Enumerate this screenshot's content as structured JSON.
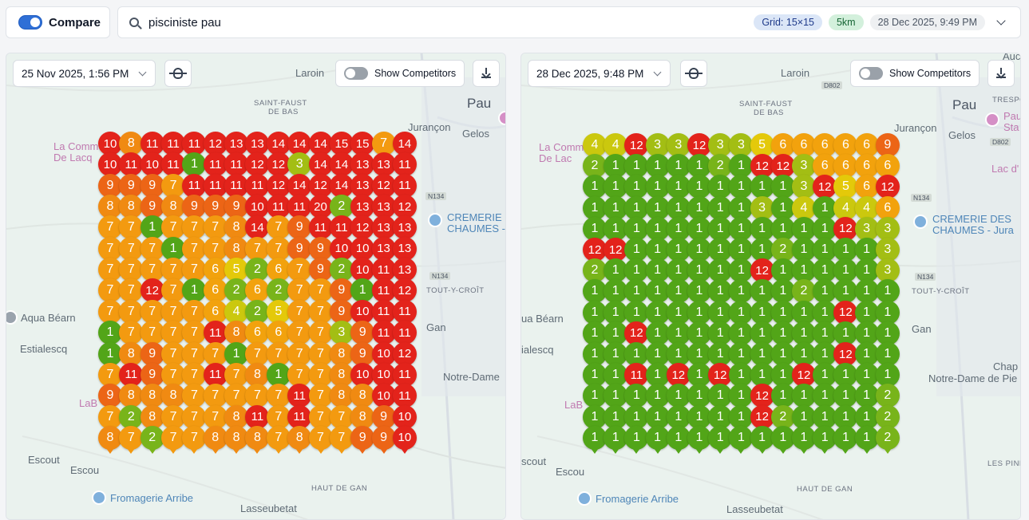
{
  "topbar": {
    "compare_label": "Compare",
    "search_value": "pisciniste pau",
    "badge_grid": "Grid: 15×15",
    "badge_km": "5km",
    "badge_date": "28 Dec 2025, 9:49 PM"
  },
  "colors": {
    "1": "#52a518",
    "2": "#78b41a",
    "3": "#a3be14",
    "4": "#cbc80e",
    "5": "#e4c90a",
    "6": "#f2a20d",
    "7": "#f39a10",
    "8": "#f08a12",
    "9": "#ec6516",
    "10": "#e4281c",
    "high": "#e3231b"
  },
  "left_panel": {
    "date": "25 Nov 2025, 1:56 PM",
    "competitors_label": "Show Competitors",
    "map_labels": {
      "laroin": "Laroin",
      "saint_faust": "SAINT-FAUST",
      "de_bas": "DE BAS",
      "pau": "Pau",
      "jurancon": "Jurançon",
      "gelos": "Gelos",
      "la_commune": "La Commune",
      "de_lacq": "De Lacq",
      "cremerie": "CREMERIE D",
      "chaumes": "CHAUMES -",
      "n134a": "N134",
      "n134b": "N134",
      "tout_y_croit": "TOUT-Y-CROÎT",
      "aqua": "Aqua Béarn",
      "estialescq": "Estialescq",
      "gan": "Gan",
      "notre_dame": "Notre-Dame",
      "escout": "Escout",
      "escou": "Escou",
      "labo": "LaB",
      "haut_de_gan": "HAUT DE GAN",
      "fromagerie": "Fromagerie Arribe",
      "lasseubetat": "Lasseubetat"
    },
    "grid": [
      [
        "10",
        "8",
        "11",
        "11",
        "11",
        "12",
        "13",
        "13",
        "14",
        "14",
        "14",
        "15",
        "15",
        "7",
        "14"
      ],
      [
        "10",
        "11",
        "10",
        "11",
        "1",
        "11",
        "11",
        "12",
        "12",
        "3",
        "14",
        "14",
        "13",
        "13",
        "11"
      ],
      [
        "9",
        "9",
        "9",
        "7",
        "11",
        "11",
        "11",
        "11",
        "12",
        "14",
        "12",
        "14",
        "13",
        "12",
        "11"
      ],
      [
        "8",
        "8",
        "9",
        "8",
        "9",
        "9",
        "9",
        "10",
        "11",
        "11",
        "20",
        "2",
        "13",
        "13",
        "12"
      ],
      [
        "7",
        "7",
        "1",
        "7",
        "7",
        "7",
        "8",
        "14",
        "7",
        "9",
        "11",
        "11",
        "12",
        "13",
        "13"
      ],
      [
        "7",
        "7",
        "7",
        "1",
        "7",
        "7",
        "8",
        "7",
        "7",
        "9",
        "9",
        "10",
        "10",
        "13",
        "13"
      ],
      [
        "7",
        "7",
        "7",
        "7",
        "7",
        "6",
        "5",
        "2",
        "6",
        "7",
        "9",
        "2",
        "10",
        "11",
        "13"
      ],
      [
        "7",
        "7",
        "12",
        "7",
        "1",
        "6",
        "2",
        "6",
        "2",
        "7",
        "7",
        "9",
        "1",
        "11",
        "12"
      ],
      [
        "7",
        "7",
        "7",
        "7",
        "7",
        "6",
        "4",
        "2",
        "5",
        "7",
        "7",
        "9",
        "10",
        "11",
        "11"
      ],
      [
        "1",
        "7",
        "7",
        "7",
        "7",
        "11",
        "8",
        "6",
        "6",
        "7",
        "7",
        "3",
        "9",
        "11",
        "11"
      ],
      [
        "1",
        "8",
        "9",
        "7",
        "7",
        "7",
        "1",
        "7",
        "7",
        "7",
        "7",
        "8",
        "9",
        "10",
        "12"
      ],
      [
        "7",
        "11",
        "9",
        "7",
        "7",
        "11",
        "7",
        "8",
        "1",
        "7",
        "7",
        "8",
        "10",
        "10",
        "11"
      ],
      [
        "9",
        "8",
        "8",
        "8",
        "7",
        "7",
        "7",
        "7",
        "7",
        "11",
        "7",
        "8",
        "8",
        "10",
        "11"
      ],
      [
        "7",
        "2",
        "8",
        "7",
        "7",
        "7",
        "8",
        "11",
        "7",
        "11",
        "7",
        "7",
        "8",
        "9",
        "10"
      ],
      [
        "8",
        "7",
        "2",
        "7",
        "7",
        "8",
        "8",
        "8",
        "7",
        "8",
        "7",
        "7",
        "9",
        "9",
        "10"
      ]
    ]
  },
  "right_panel": {
    "date": "28 Dec 2025, 9:48 PM",
    "competitors_label": "Show Competitors",
    "map_labels": {
      "laroin": "Laroin",
      "d802": "D802",
      "saint_faust": "SAINT-FAUST",
      "de_bas": "DE BAS",
      "pau": "Pau",
      "auc": "Auc",
      "trespo": "TRESPO",
      "pau_s": "Pau",
      "sta": "Sta",
      "jurancon": "Jurançon",
      "gelos": "Gelos",
      "d802b": "D802",
      "la_commune": "La Comm",
      "de_lacq": "De Lac",
      "lac_d": "Lac d'",
      "n134a": "N134",
      "cremerie": "CREMERIE DES",
      "chaumes": "CHAUMES - Jura",
      "n134b": "N134",
      "tout_y_croit": "TOUT-Y-CROÎT",
      "aqua": "ua Béarn",
      "gan": "Gan",
      "estialescq": "ialescq",
      "chap": "Chap",
      "notre_dame": "Notre-Dame de Pie",
      "labo": "LaB",
      "scout": "scout",
      "les_pine": "LES PINE",
      "escou": "Escou",
      "haut_de_gan": "HAUT DE GAN",
      "fromagerie": "Fromagerie Arribe",
      "lasseubetat": "Lasseubetat"
    },
    "grid": [
      [
        "4",
        "4",
        "12",
        "3",
        "3",
        "12",
        "3",
        "3",
        "5",
        "6",
        "6",
        "6",
        "6",
        "6",
        "9"
      ],
      [
        "2",
        "1",
        "1",
        "1",
        "1",
        "1",
        "2",
        "1",
        "12",
        "12",
        "3",
        "6",
        "6",
        "6",
        "6"
      ],
      [
        "1",
        "1",
        "1",
        "1",
        "1",
        "1",
        "1",
        "1",
        "1",
        "1",
        "3",
        "12",
        "5",
        "6",
        "12"
      ],
      [
        "1",
        "1",
        "1",
        "1",
        "1",
        "1",
        "1",
        "1",
        "3",
        "1",
        "4",
        "1",
        "4",
        "4",
        "6"
      ],
      [
        "1",
        "1",
        "1",
        "1",
        "1",
        "1",
        "1",
        "1",
        "1",
        "1",
        "1",
        "1",
        "12",
        "3",
        "3"
      ],
      [
        "12",
        "12",
        "1",
        "1",
        "1",
        "1",
        "1",
        "1",
        "1",
        "2",
        "1",
        "1",
        "1",
        "1",
        "3"
      ],
      [
        "2",
        "1",
        "1",
        "1",
        "1",
        "1",
        "1",
        "1",
        "12",
        "1",
        "1",
        "1",
        "1",
        "1",
        "3"
      ],
      [
        "1",
        "1",
        "1",
        "1",
        "1",
        "1",
        "1",
        "1",
        "1",
        "1",
        "2",
        "1",
        "1",
        "1",
        "1"
      ],
      [
        "1",
        "1",
        "1",
        "1",
        "1",
        "1",
        "1",
        "1",
        "1",
        "1",
        "1",
        "1",
        "12",
        "1",
        "1"
      ],
      [
        "1",
        "1",
        "12",
        "1",
        "1",
        "1",
        "1",
        "1",
        "1",
        "1",
        "1",
        "1",
        "1",
        "1",
        "1"
      ],
      [
        "1",
        "1",
        "1",
        "1",
        "1",
        "1",
        "1",
        "1",
        "1",
        "1",
        "1",
        "1",
        "12",
        "1",
        "1"
      ],
      [
        "1",
        "1",
        "11",
        "1",
        "12",
        "1",
        "12",
        "1",
        "1",
        "1",
        "12",
        "1",
        "1",
        "1",
        "1"
      ],
      [
        "1",
        "1",
        "1",
        "1",
        "1",
        "1",
        "1",
        "1",
        "12",
        "1",
        "1",
        "1",
        "1",
        "1",
        "2"
      ],
      [
        "1",
        "1",
        "1",
        "1",
        "1",
        "1",
        "1",
        "1",
        "12",
        "2",
        "1",
        "1",
        "1",
        "1",
        "2"
      ],
      [
        "1",
        "1",
        "1",
        "1",
        "1",
        "1",
        "1",
        "1",
        "1",
        "1",
        "1",
        "1",
        "1",
        "1",
        "2"
      ]
    ]
  }
}
